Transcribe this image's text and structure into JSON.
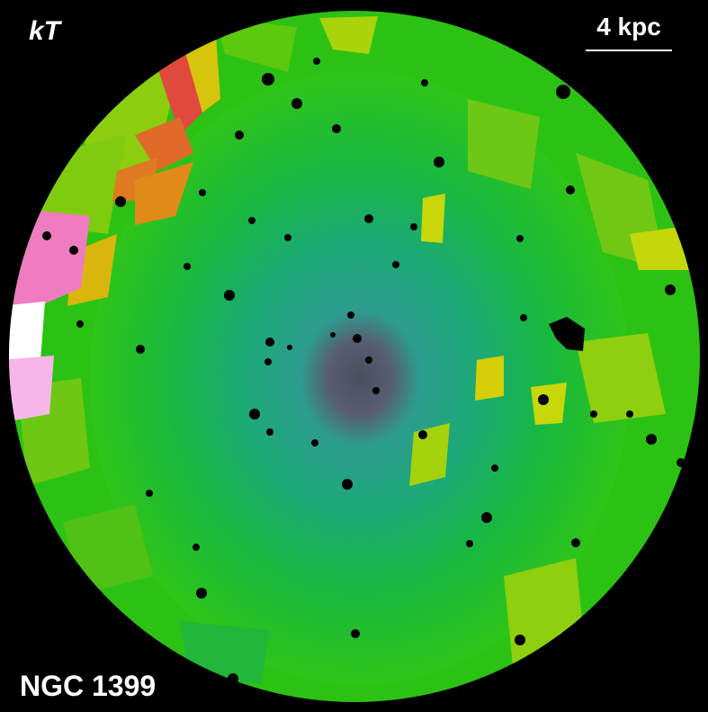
{
  "map_label": "kT",
  "scale_bar": {
    "text": "4 kpc"
  },
  "object_name": "NGC 1399",
  "colors": {
    "background": "#000000",
    "outer_green": "#2cc214",
    "mid_green": "#17b52a",
    "teal": "#1fa68a",
    "core": "#5b4f6e",
    "yellow_green": "#9fd20c",
    "orange": "#e07020",
    "red": "#e04a3c",
    "pink": "#ef7cc1",
    "white": "#ffffff"
  }
}
